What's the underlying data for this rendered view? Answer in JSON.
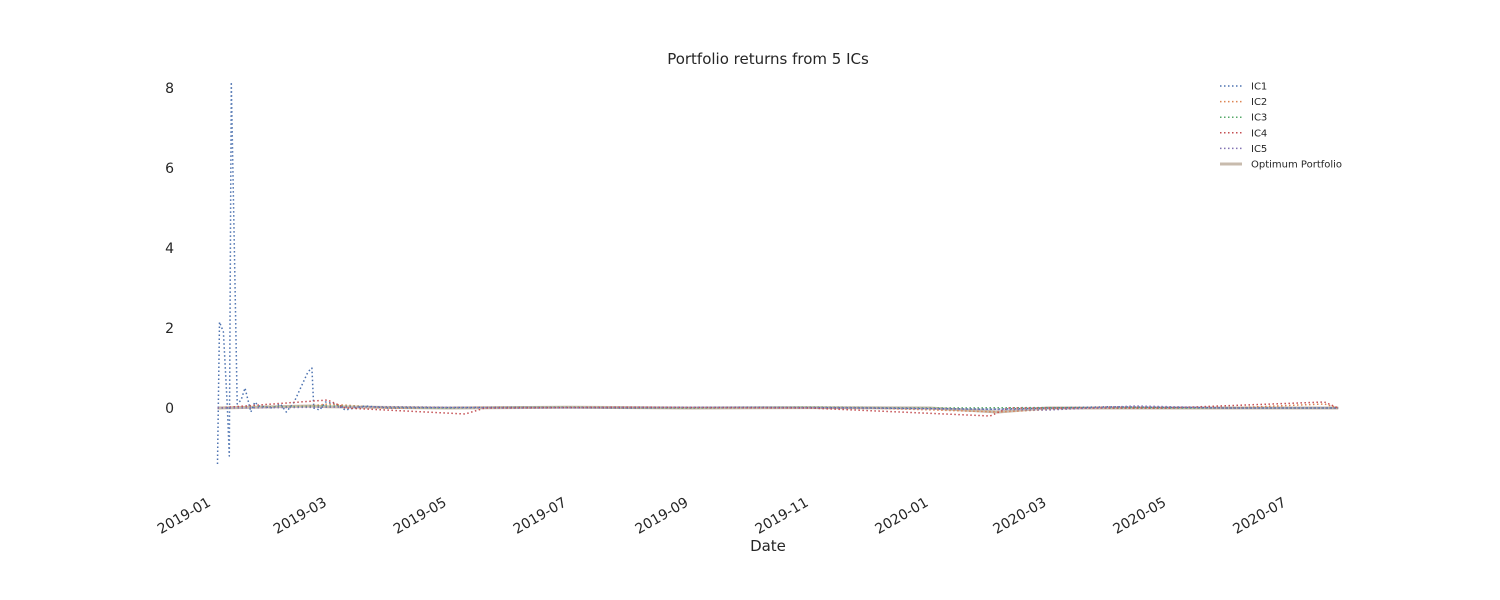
{
  "chart_data": {
    "type": "line",
    "title": "Portfolio returns from 5 ICs",
    "xlabel": "Date",
    "ylabel": "",
    "x_range": [
      "2018-12-20",
      "2020-08-01"
    ],
    "ylim": [
      -2.0,
      8.4
    ],
    "x_ticks": [
      "2019-01",
      "2019-03",
      "2019-05",
      "2019-07",
      "2019-09",
      "2019-11",
      "2020-01",
      "2020-03",
      "2020-05",
      "2020-07"
    ],
    "y_ticks": [
      0,
      2,
      4,
      6,
      8
    ],
    "grid": false,
    "legend_position": "top-right",
    "series": [
      {
        "name": "IC1",
        "color": "#4c72b0",
        "style": "dotted",
        "points": [
          [
            "2019-01-04",
            -1.4
          ],
          [
            "2019-01-05",
            2.15
          ],
          [
            "2019-01-07",
            1.9
          ],
          [
            "2019-01-09",
            0.05
          ],
          [
            "2019-01-10",
            -1.2
          ],
          [
            "2019-01-11",
            8.15
          ],
          [
            "2019-01-14",
            0.1
          ],
          [
            "2019-01-16",
            0.2
          ],
          [
            "2019-01-18",
            0.5
          ],
          [
            "2019-01-21",
            -0.1
          ],
          [
            "2019-01-23",
            0.15
          ],
          [
            "2019-01-25",
            0.05
          ],
          [
            "2019-02-01",
            0.0
          ],
          [
            "2019-02-05",
            0.1
          ],
          [
            "2019-02-08",
            -0.1
          ],
          [
            "2019-02-12",
            0.15
          ],
          [
            "2019-02-19",
            0.9
          ],
          [
            "2019-02-21",
            1.0
          ],
          [
            "2019-02-22",
            0.0
          ],
          [
            "2019-02-25",
            -0.05
          ],
          [
            "2019-02-28",
            0.15
          ],
          [
            "2019-03-05",
            0.1
          ],
          [
            "2019-03-10",
            -0.05
          ],
          [
            "2019-03-20",
            0.05
          ],
          [
            "2019-04-01",
            0.0
          ],
          [
            "2019-06-01",
            0.02
          ],
          [
            "2019-08-01",
            0.0
          ],
          [
            "2019-10-01",
            0.02
          ],
          [
            "2019-12-01",
            0.0
          ],
          [
            "2020-02-01",
            -0.03
          ],
          [
            "2020-04-01",
            0.03
          ],
          [
            "2020-06-01",
            0.0
          ],
          [
            "2020-07-27",
            0.0
          ]
        ]
      },
      {
        "name": "IC2",
        "color": "#dd8452",
        "style": "dotted",
        "points": [
          [
            "2019-01-04",
            0.0
          ],
          [
            "2019-02-20",
            0.05
          ],
          [
            "2019-03-01",
            0.1
          ],
          [
            "2019-04-01",
            0.0
          ],
          [
            "2019-06-01",
            0.02
          ],
          [
            "2019-08-01",
            0.0
          ],
          [
            "2019-10-01",
            0.01
          ],
          [
            "2019-12-01",
            0.0
          ],
          [
            "2020-02-05",
            -0.1
          ],
          [
            "2020-04-01",
            0.03
          ],
          [
            "2020-06-01",
            0.0
          ],
          [
            "2020-07-10",
            0.08
          ],
          [
            "2020-07-20",
            0.1
          ],
          [
            "2020-07-27",
            0.0
          ]
        ]
      },
      {
        "name": "IC3",
        "color": "#55a868",
        "style": "dotted",
        "points": [
          [
            "2019-01-04",
            0.0
          ],
          [
            "2019-03-01",
            0.05
          ],
          [
            "2019-05-01",
            0.0
          ],
          [
            "2019-07-01",
            0.02
          ],
          [
            "2019-09-01",
            0.0
          ],
          [
            "2019-11-01",
            0.02
          ],
          [
            "2020-01-01",
            0.0
          ],
          [
            "2020-03-01",
            0.01
          ],
          [
            "2020-05-01",
            0.0
          ],
          [
            "2020-07-27",
            0.0
          ]
        ]
      },
      {
        "name": "IC4",
        "color": "#c44e52",
        "style": "dotted",
        "points": [
          [
            "2019-01-04",
            0.0
          ],
          [
            "2019-03-01",
            0.2
          ],
          [
            "2019-03-10",
            0.0
          ],
          [
            "2019-05-10",
            -0.15
          ],
          [
            "2019-05-20",
            0.0
          ],
          [
            "2019-08-01",
            0.02
          ],
          [
            "2019-11-01",
            0.0
          ],
          [
            "2020-02-01",
            -0.2
          ],
          [
            "2020-02-10",
            0.0
          ],
          [
            "2020-05-01",
            0.0
          ],
          [
            "2020-07-20",
            0.15
          ],
          [
            "2020-07-27",
            0.0
          ]
        ]
      },
      {
        "name": "IC5",
        "color": "#8172b3",
        "style": "dotted",
        "points": [
          [
            "2019-01-04",
            0.0
          ],
          [
            "2019-04-01",
            0.03
          ],
          [
            "2019-06-01",
            0.0
          ],
          [
            "2019-09-01",
            0.02
          ],
          [
            "2019-12-01",
            0.0
          ],
          [
            "2020-03-01",
            -0.05
          ],
          [
            "2020-04-15",
            0.05
          ],
          [
            "2020-06-01",
            0.0
          ],
          [
            "2020-07-27",
            0.0
          ]
        ]
      },
      {
        "name": "Optimum Portfolio",
        "color": "#c8bbad",
        "style": "solid",
        "points": [
          [
            "2019-01-04",
            0.0
          ],
          [
            "2019-02-20",
            0.05
          ],
          [
            "2019-03-01",
            0.03
          ],
          [
            "2019-05-01",
            0.0
          ],
          [
            "2019-07-01",
            0.02
          ],
          [
            "2019-09-01",
            0.0
          ],
          [
            "2019-11-01",
            0.01
          ],
          [
            "2020-01-01",
            0.0
          ],
          [
            "2020-02-05",
            -0.1
          ],
          [
            "2020-03-01",
            0.0
          ],
          [
            "2020-05-01",
            0.0
          ],
          [
            "2020-07-27",
            0.0
          ]
        ]
      }
    ]
  }
}
